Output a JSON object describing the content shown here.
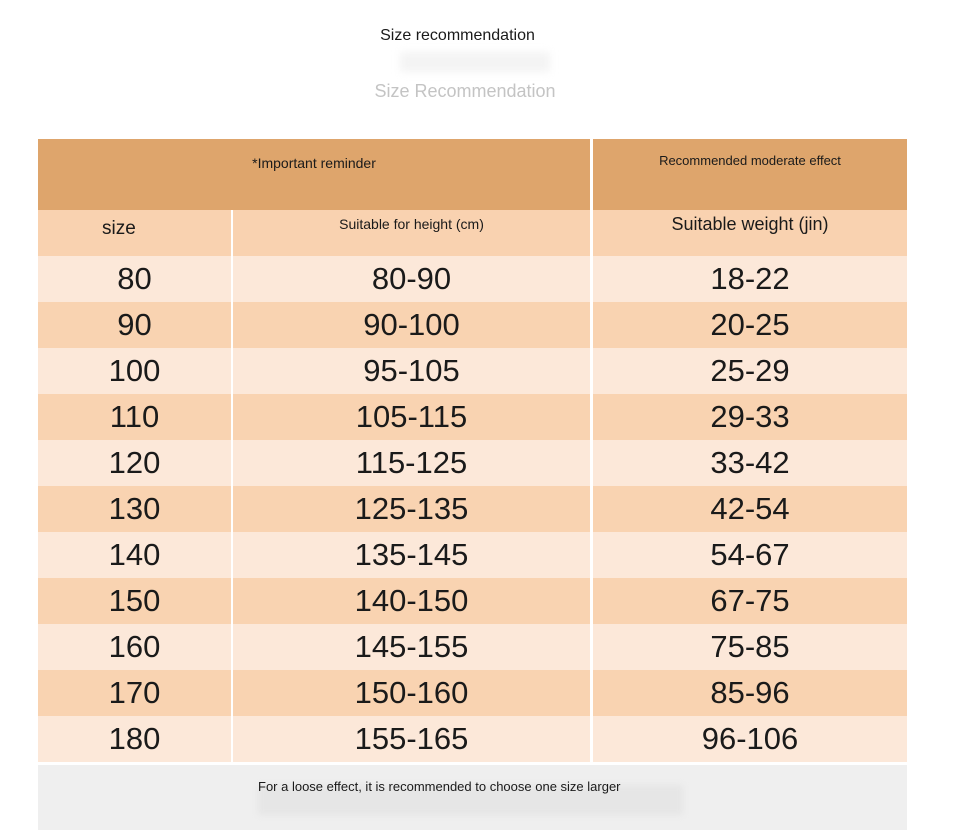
{
  "title": "Size recommendation",
  "subtitle": "Size Recommendation",
  "header": {
    "important": "*Important reminder",
    "effect": "Recommended moderate effect"
  },
  "columns": [
    "size",
    "Suitable for height (cm)",
    "Suitable weight (jin)"
  ],
  "rows": [
    [
      "80",
      "80-90",
      "18-22"
    ],
    [
      "90",
      "90-100",
      "20-25"
    ],
    [
      "100",
      "95-105",
      "25-29"
    ],
    [
      "110",
      "105-115",
      "29-33"
    ],
    [
      "120",
      "115-125",
      "33-42"
    ],
    [
      "130",
      "125-135",
      "42-54"
    ],
    [
      "140",
      "135-145",
      "54-67"
    ],
    [
      "150",
      "140-150",
      "67-75"
    ],
    [
      "160",
      "145-155",
      "75-85"
    ],
    [
      "170",
      "150-160",
      "85-96"
    ],
    [
      "180",
      "155-165",
      "96-106"
    ]
  ],
  "footer": "For a loose effect, it is recommended to choose one size larger",
  "colors": {
    "header": "#dea56c",
    "subheader": "#f9d2b0",
    "row_light": "#fce8d9",
    "row_dark": "#f9d3b1",
    "footer": "#efefef"
  }
}
